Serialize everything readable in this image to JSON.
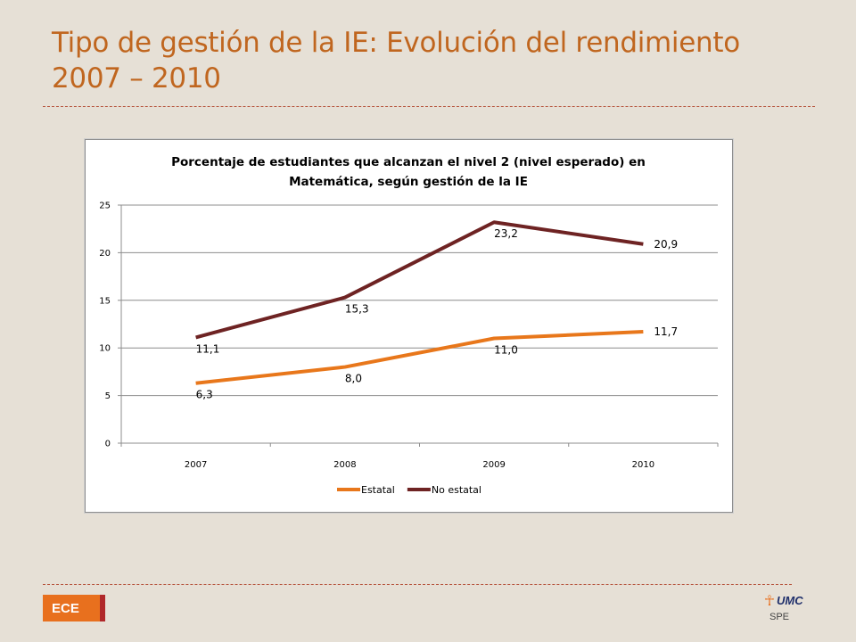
{
  "slide": {
    "title_line1": "Tipo de gestión de la IE: Evolución del rendimiento",
    "title_line2": "2007 – 2010",
    "tag": "ECE",
    "logo_text": "UMC",
    "logo_sub": "SPE",
    "colors": {
      "title": "#c0661f",
      "background": "#e6e0d6",
      "tag": "#e8701e"
    }
  },
  "chart_data": {
    "type": "line",
    "title_line1": "Porcentaje de estudiantes que alcanzan el nivel 2 (nivel esperado) en",
    "title_line2": "Matemática, según gestión de la IE",
    "categories": [
      "2007",
      "2008",
      "2009",
      "2010"
    ],
    "ylim": [
      0,
      25
    ],
    "yticks": [
      "0",
      "5",
      "10",
      "15",
      "20",
      "25"
    ],
    "ytick_values": [
      0,
      5,
      10,
      15,
      20,
      25
    ],
    "grid": true,
    "legend": "bottom",
    "series": [
      {
        "name": "Estatal",
        "color": "#e8771b",
        "values": [
          6.3,
          8.0,
          11.0,
          11.7
        ],
        "labels": [
          "6,3",
          "8,0",
          "11,0",
          "11,7"
        ]
      },
      {
        "name": "No estatal",
        "color": "#6e2323",
        "values": [
          11.1,
          15.3,
          23.2,
          20.9
        ],
        "labels": [
          "11,1",
          "15,3",
          "23,2",
          "20,9"
        ]
      }
    ]
  }
}
